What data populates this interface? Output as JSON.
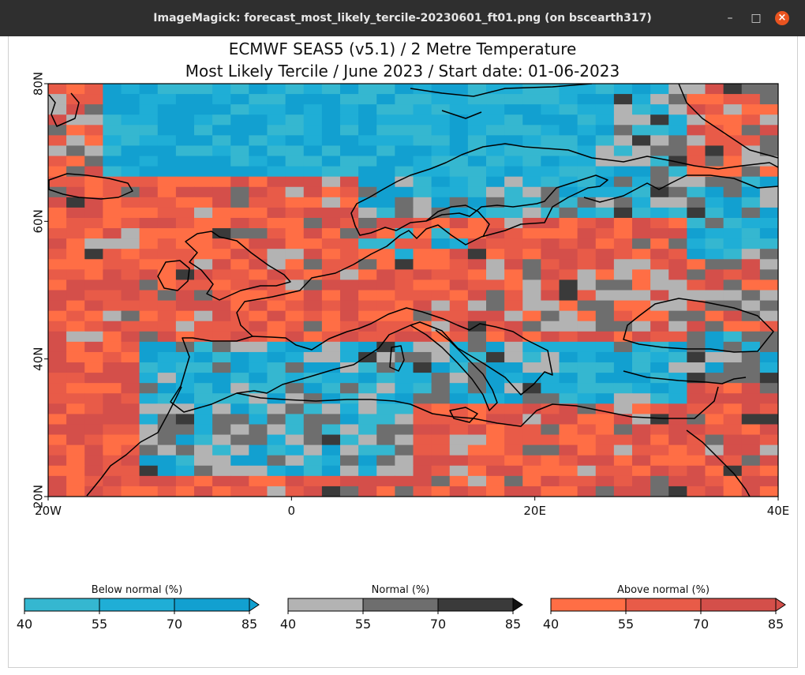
{
  "window": {
    "title": "ImageMagick: forecast_most_likely_tercile-20230601_ft01.png (on bscearth317)",
    "buttons": {
      "minimize": "–",
      "maximize": "□",
      "close": "×"
    }
  },
  "figure": {
    "title_line1": "ECMWF SEAS5 (v5.1) / 2 Metre Temperature",
    "title_line2": "Most Likely Tercile / June 2023 / Start date: 01-06-2023"
  },
  "map": {
    "lon_range": [
      -20,
      40
    ],
    "lat_range": [
      20,
      80
    ],
    "lat_ticks": [
      "20N",
      "40N",
      "60N",
      "80N"
    ],
    "lon_ticks": [
      "20W",
      "0",
      "20E",
      "40E"
    ]
  },
  "colorbars": [
    {
      "label": "Below normal (%)",
      "ticks": [
        "40",
        "55",
        "70",
        "85"
      ],
      "colors": [
        "#35b7d0",
        "#1faed6",
        "#12a0d0"
      ]
    },
    {
      "label": "Normal (%)",
      "ticks": [
        "40",
        "55",
        "70",
        "85"
      ],
      "colors": [
        "#b3b3b3",
        "#6e6e6e",
        "#3a3a3a"
      ]
    },
    {
      "label": "Above normal (%)",
      "ticks": [
        "40",
        "55",
        "70",
        "85"
      ],
      "colors": [
        "#ff6e45",
        "#e85b48",
        "#d44f4a"
      ]
    }
  ],
  "colors": {
    "below": [
      "#35b7d0",
      "#1faed6",
      "#12a0d0"
    ],
    "normal": [
      "#b3b3b3",
      "#6e6e6e",
      "#3a3a3a"
    ],
    "above": [
      "#ff6e45",
      "#e85b48",
      "#d44f4a"
    ]
  }
}
